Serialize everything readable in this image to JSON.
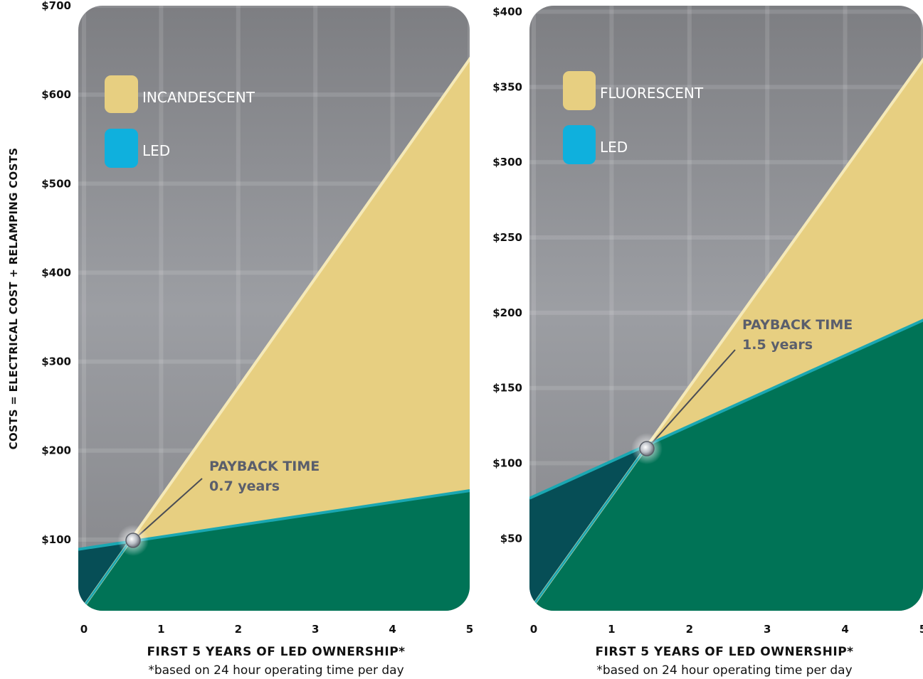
{
  "colors": {
    "background": "#8a8b8f",
    "incandescent_area": "#e7cf81",
    "fluorescent_area": "#e7cf81",
    "led_area": "#007356",
    "led_dark_area": "#064e56",
    "led_line": "#1aa7b2",
    "legend_led": "#0fb0dd",
    "payback_text": "#5a5e6c"
  },
  "y_axis_label": "COSTS = ELECTRICAL COST + RELAMPING COSTS",
  "chart_data": [
    {
      "type": "line",
      "x_ticks": [
        "0",
        "1",
        "2",
        "3",
        "4",
        "5"
      ],
      "y_ticks": [
        "$100",
        "$200",
        "$300",
        "$400",
        "$500",
        "$600",
        "$700"
      ],
      "xlabel": "FIRST 5 YEARS OF LED OWNERSHIP*",
      "note": "*based on 24 hour operating time per day",
      "xlim": [
        0,
        5
      ],
      "ylim": [
        20,
        700
      ],
      "series": [
        {
          "name": "INCANDESCENT",
          "color": "#e7cf81",
          "x": [
            0,
            5
          ],
          "y": [
            25,
            640
          ]
        },
        {
          "name": "LED",
          "color": "#0fb0dd",
          "x": [
            0,
            5
          ],
          "y": [
            90,
            155
          ]
        }
      ],
      "annotation": {
        "title": "PAYBACK TIME",
        "value": "0.7 years",
        "x": 0.7,
        "y": 98
      },
      "legend": "top-left",
      "grid": true
    },
    {
      "type": "line",
      "x_ticks": [
        "0",
        "1",
        "2",
        "3",
        "4",
        "5"
      ],
      "y_ticks": [
        "$50",
        "$100",
        "$150",
        "$200",
        "$250",
        "$300",
        "$350",
        "$400"
      ],
      "xlabel": "FIRST 5 YEARS OF LED OWNERSHIP*",
      "note": "*based on 24 hour operating time per day",
      "xlim": [
        0,
        5
      ],
      "ylim": [
        2,
        404
      ],
      "series": [
        {
          "name": "FLUORESCENT",
          "color": "#e7cf81",
          "x": [
            0,
            5
          ],
          "y": [
            6,
            368
          ]
        },
        {
          "name": "LED",
          "color": "#0fb0dd",
          "x": [
            0,
            5
          ],
          "y": [
            78,
            195
          ]
        }
      ],
      "annotation": {
        "title": "PAYBACK TIME",
        "value": "1.5 years",
        "x": 1.5,
        "y": 110
      },
      "legend": "top-left",
      "grid": true
    }
  ]
}
